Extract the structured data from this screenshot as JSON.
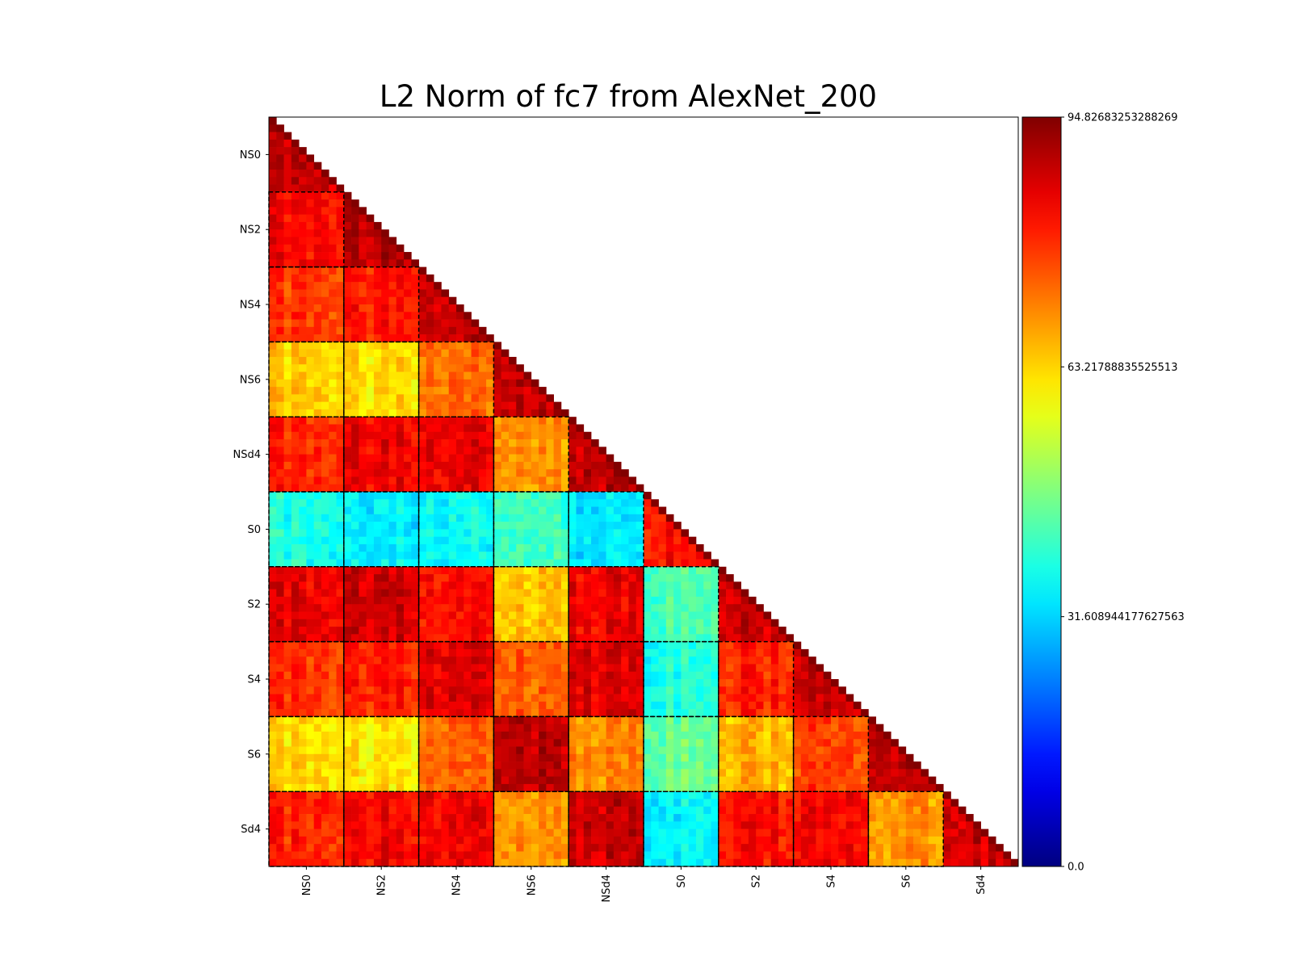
{
  "chart_data": {
    "type": "heatmap",
    "title": "L2 Norm of fc7 from AlexNet_200",
    "xlabel": "",
    "ylabel": "",
    "colormap": "jet",
    "lower_triangle": true,
    "grid": false,
    "block_separators": "dashed",
    "categories": [
      "NS0",
      "NS2",
      "NS4",
      "NS6",
      "NSd4",
      "S0",
      "S2",
      "S4",
      "S6",
      "Sd4"
    ],
    "cells_per_block": 10,
    "block_values": [
      [
        88
      ],
      [
        83,
        89
      ],
      [
        78,
        81,
        88
      ],
      [
        64,
        62,
        73,
        89
      ],
      [
        80,
        84,
        85,
        70,
        89
      ],
      [
        38,
        34,
        36,
        42,
        33,
        82
      ],
      [
        85,
        87,
        82,
        65,
        84,
        42,
        88
      ],
      [
        79,
        80,
        86,
        75,
        86,
        38,
        80,
        88
      ],
      [
        63,
        61,
        74,
        90,
        70,
        45,
        66,
        77,
        89
      ],
      [
        80,
        83,
        84,
        70,
        88,
        35,
        82,
        84,
        69,
        88
      ]
    ],
    "colorbar": {
      "min": 0.0,
      "max": 94.82683253288269,
      "ticks": [
        0.0,
        31.608944177627563,
        63.21788835525513,
        94.82683253288269
      ],
      "tick_labels": [
        "0.0",
        "31.608944177627563",
        "63.21788835525513",
        "94.82683253288269"
      ]
    }
  }
}
